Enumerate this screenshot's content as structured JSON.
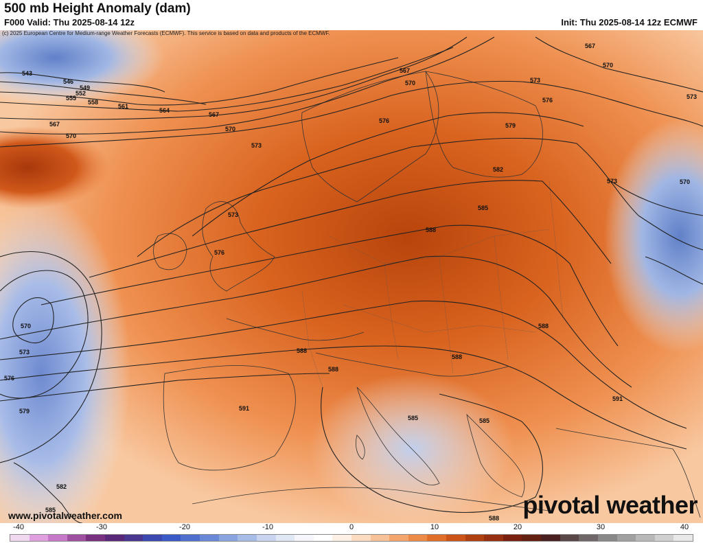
{
  "header": {
    "title": "500 mb Height Anomaly (dam)",
    "valid": "F000 Valid: Thu 2025-08-14 12z",
    "init": "Init: Thu 2025-08-14 12z ECMWF"
  },
  "map": {
    "copyright": "(c) 2025 European Centre for Medium-range Weather Forecasts (ECMWF). This service is based on data and products of the ECMWF.",
    "website": "www.pivotalweather.com",
    "brand": "pivotal weather",
    "contour_labels": [
      "543",
      "546",
      "549",
      "552",
      "555",
      "558",
      "561",
      "564",
      "567",
      "570",
      "573",
      "576",
      "579",
      "582",
      "585",
      "588",
      "591"
    ]
  },
  "colorbar": {
    "ticks": [
      "-40",
      "-30",
      "-20",
      "-10",
      "0",
      "10",
      "20",
      "30",
      "40"
    ],
    "colors": [
      "#f0d8f0",
      "#e0a0e0",
      "#c878c8",
      "#a050a0",
      "#7a3080",
      "#5a2878",
      "#4a3890",
      "#3a48b0",
      "#3a5ac8",
      "#5070d0",
      "#6a88d8",
      "#8aa4e0",
      "#a8bce8",
      "#c8d4f0",
      "#e0e8f6",
      "#f4f6fb",
      "#ffffff",
      "#fdf1e6",
      "#fbdcc0",
      "#f8c298",
      "#f4a66e",
      "#ee8a48",
      "#e06e28",
      "#cc5418",
      "#b04010",
      "#963010",
      "#7a2010",
      "#642010",
      "#4a2020",
      "#5a4848",
      "#706868",
      "#888888",
      "#a0a0a0",
      "#b8b8b8",
      "#d0d0d0",
      "#e8e8e8"
    ]
  }
}
